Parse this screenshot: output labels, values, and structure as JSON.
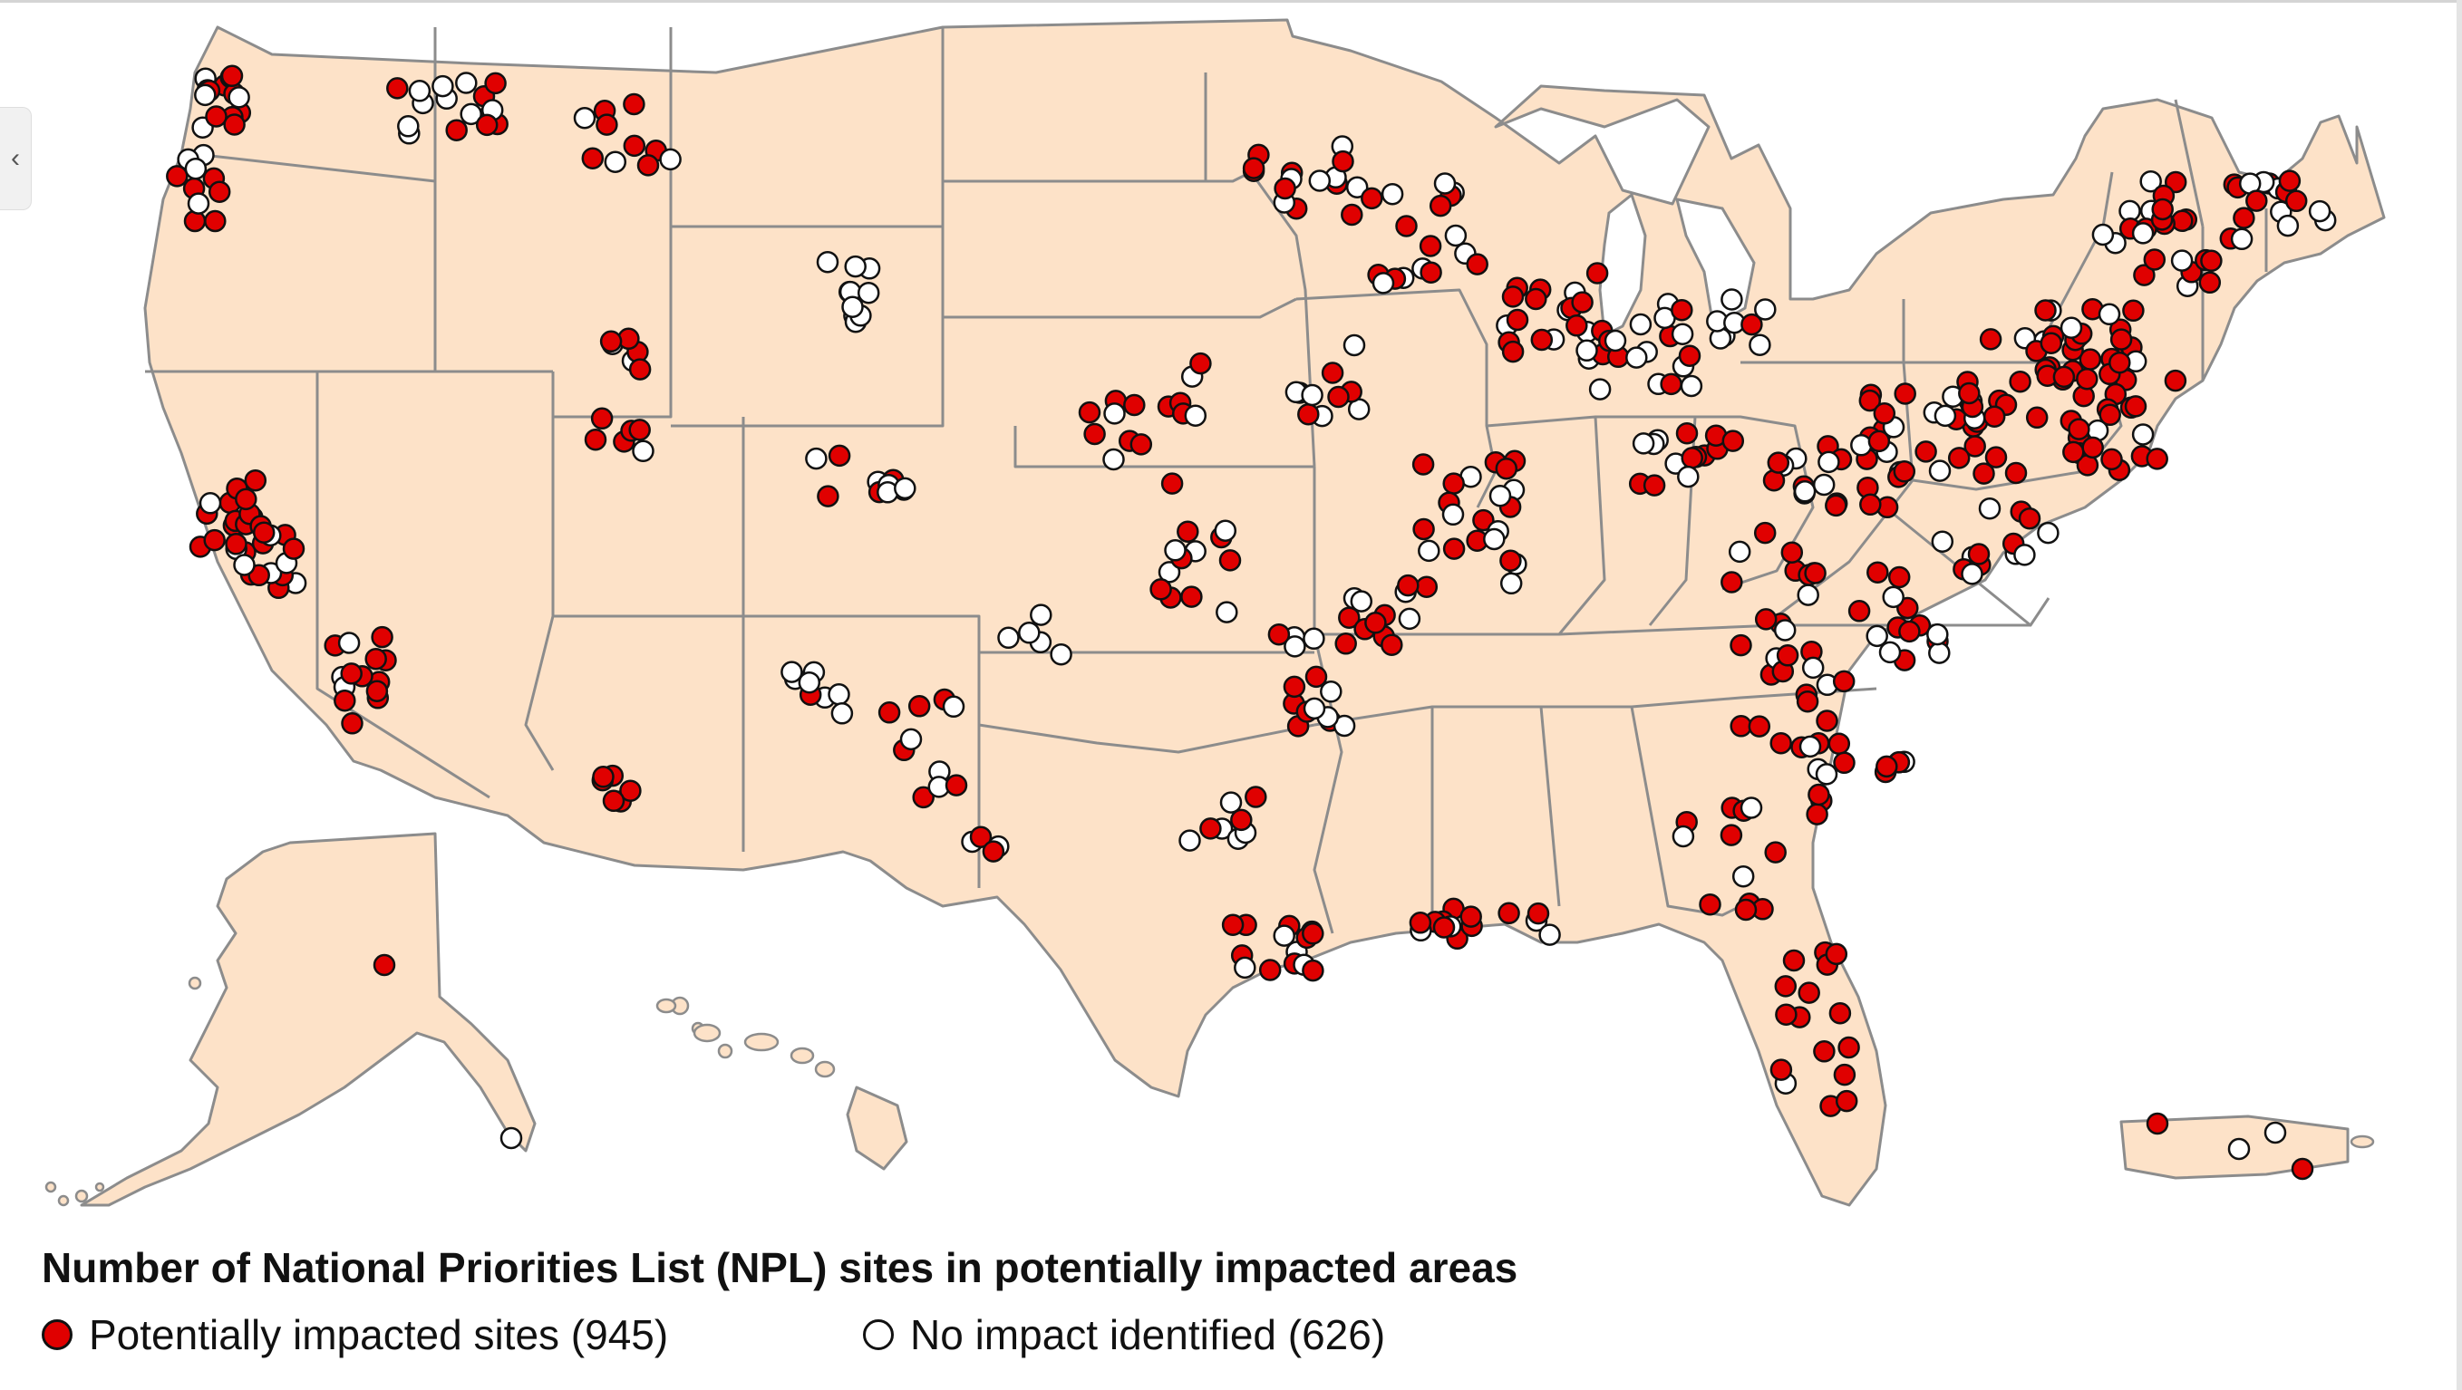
{
  "legend": {
    "title": "Number of National Priorities List (NPL) sites in potentially impacted areas",
    "impacted_label": "Potentially impacted sites (945)",
    "not_impacted_label": "No impact identified (626)",
    "impacted_color": "#e00000",
    "not_impacted_color": "#ffffff"
  },
  "map": {
    "land_color": "#fde2c8",
    "border_color": "#8c8c8c",
    "regions": [
      "Contiguous United States",
      "Alaska",
      "Hawaii",
      "Puerto Rico"
    ]
  },
  "ui": {
    "collapse_icon": "chevron-left-icon",
    "collapse_glyph": "‹"
  }
}
